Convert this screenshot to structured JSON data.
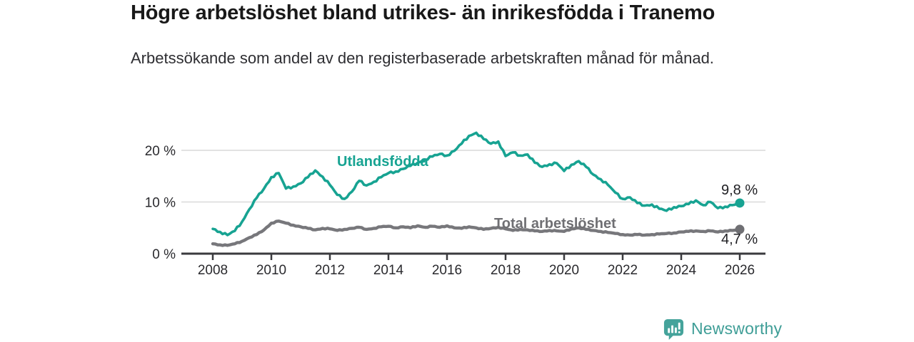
{
  "header": {
    "title": "Högre arbetslöshet bland utrikes- än inrikesfödda i Tranemo",
    "subtitle": "Arbetssökande som andel av den registerbaserade arbetskraften månad för månad."
  },
  "chart_data": {
    "type": "line",
    "title": "Högre arbetslöshet bland utrikes- än inrikesfödda i Tranemo",
    "subtitle": "Arbetssökande som andel av den registerbaserade arbetskraften månad för månad.",
    "x_unit": "decimal_year_monthly_series_sampled_quarterly",
    "xlim": [
      2008,
      2026
    ],
    "ylim": [
      0,
      25
    ],
    "grid": "horizontal",
    "legend": "inline-labels",
    "x": [
      2008,
      2008.25,
      2008.5,
      2008.75,
      2009,
      2009.25,
      2009.5,
      2009.75,
      2010,
      2010.25,
      2010.5,
      2010.75,
      2011,
      2011.25,
      2011.5,
      2011.75,
      2012,
      2012.25,
      2012.5,
      2012.75,
      2013,
      2013.25,
      2013.5,
      2013.75,
      2014,
      2014.25,
      2014.5,
      2014.75,
      2015,
      2015.25,
      2015.5,
      2015.75,
      2016,
      2016.25,
      2016.5,
      2016.75,
      2017,
      2017.25,
      2017.5,
      2017.75,
      2018,
      2018.25,
      2018.5,
      2018.75,
      2019,
      2019.25,
      2019.5,
      2019.75,
      2020,
      2020.25,
      2020.5,
      2020.75,
      2021,
      2021.25,
      2021.5,
      2021.75,
      2022,
      2022.25,
      2022.5,
      2022.75,
      2023,
      2023.25,
      2023.5,
      2023.75,
      2024,
      2024.25,
      2024.5,
      2024.75,
      2025,
      2025.25,
      2025.5,
      2025.75,
      2026
    ],
    "series": [
      {
        "name": "Utlandsfödda",
        "color": "#17a392",
        "end_label": "9,8 %",
        "end_value": 9.8,
        "values": [
          4.8,
          4.2,
          3.6,
          4.4,
          6.2,
          8.6,
          10.8,
          12.6,
          14.8,
          15.6,
          12.6,
          13.0,
          13.6,
          14.8,
          16.1,
          14.9,
          13.3,
          11.4,
          10.6,
          12.0,
          14.1,
          13.2,
          13.9,
          14.8,
          15.6,
          15.9,
          16.4,
          17.0,
          17.6,
          18.2,
          18.8,
          19.3,
          19.0,
          19.9,
          21.3,
          22.8,
          23.4,
          22.2,
          21.3,
          21.7,
          18.9,
          19.6,
          19.0,
          19.2,
          17.6,
          16.8,
          17.3,
          17.5,
          16.0,
          17.2,
          17.9,
          16.8,
          15.3,
          14.4,
          13.3,
          11.8,
          10.6,
          10.9,
          9.8,
          9.3,
          9.5,
          8.7,
          8.3,
          9.0,
          9.2,
          9.6,
          10.3,
          9.4,
          10.0,
          8.8,
          9.1,
          9.4,
          9.8
        ]
      },
      {
        "name": "Total arbetslöshet",
        "color": "#77777b",
        "end_label": "4,7 %",
        "end_value": 4.7,
        "values": [
          1.9,
          1.7,
          1.6,
          1.9,
          2.4,
          3.1,
          3.7,
          4.6,
          5.9,
          6.3,
          5.9,
          5.5,
          5.2,
          4.9,
          4.6,
          4.9,
          4.8,
          4.5,
          4.7,
          4.9,
          5.1,
          4.7,
          4.9,
          5.2,
          5.3,
          5.0,
          5.2,
          5.0,
          5.4,
          5.1,
          5.3,
          5.1,
          5.4,
          5.0,
          4.9,
          5.2,
          5.0,
          4.7,
          4.9,
          5.1,
          4.8,
          4.5,
          4.7,
          4.6,
          4.4,
          4.3,
          4.5,
          4.4,
          4.3,
          4.8,
          5.0,
          4.7,
          4.5,
          4.3,
          4.1,
          3.9,
          3.7,
          3.6,
          3.7,
          3.6,
          3.7,
          3.8,
          3.9,
          4.0,
          4.2,
          4.3,
          4.4,
          4.3,
          4.4,
          4.2,
          4.4,
          4.5,
          4.7
        ]
      }
    ],
    "yticks": [
      {
        "value": 0,
        "label": "0 %"
      },
      {
        "value": 10,
        "label": "10 %"
      },
      {
        "value": 20,
        "label": "20 %"
      }
    ],
    "xticks": [
      {
        "value": 2008,
        "label": "2008"
      },
      {
        "value": 2010,
        "label": "2010"
      },
      {
        "value": 2012,
        "label": "2012"
      },
      {
        "value": 2014,
        "label": "2014"
      },
      {
        "value": 2016,
        "label": "2016"
      },
      {
        "value": 2018,
        "label": "2018"
      },
      {
        "value": 2020,
        "label": "2020"
      },
      {
        "value": 2022,
        "label": "2022"
      },
      {
        "value": 2024,
        "label": "2024"
      },
      {
        "value": 2026,
        "label": "2026"
      }
    ]
  },
  "colors": {
    "teal_series": "#17a392",
    "gray_series": "#77777b",
    "gridline": "#d9d9d9",
    "axis": "#3a3a3e",
    "title_text": "#191919",
    "subtitle_text": "#2e2e32",
    "brand_teal": "#3f9e97"
  },
  "footer": {
    "brand": "Newsworthy",
    "logo_icon": "bar-chart-speech-bubble-icon"
  }
}
